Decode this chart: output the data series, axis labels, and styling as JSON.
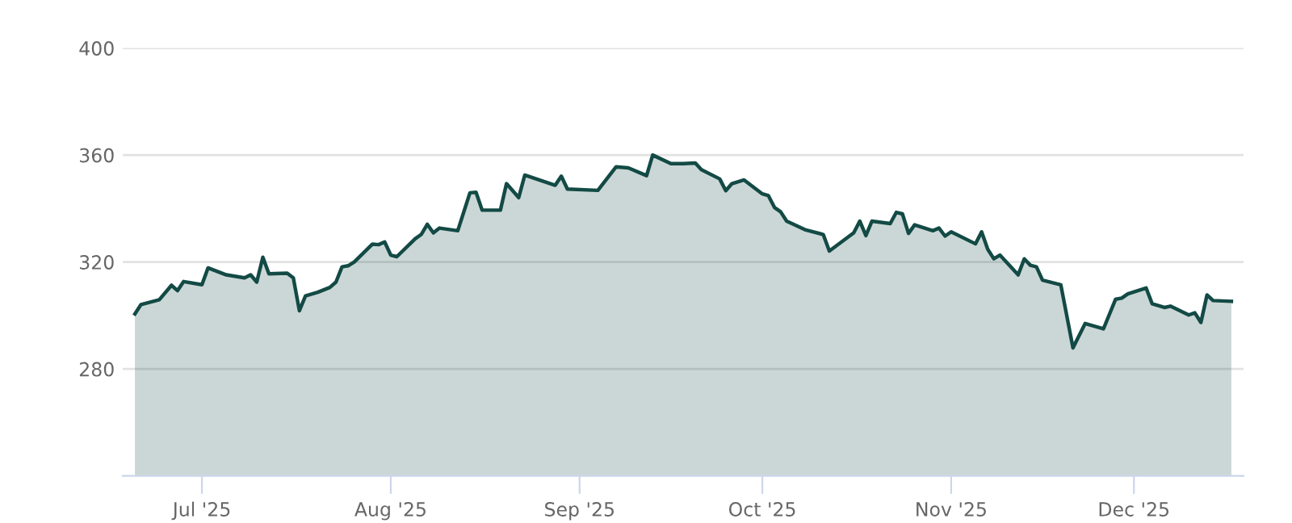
{
  "chart_data": {
    "type": "area",
    "color": "#134a45",
    "ylim": [
      240,
      400
    ],
    "yticks": [
      280,
      320,
      360,
      400
    ],
    "xlim": [
      "2025-06-18",
      "2025-12-19"
    ],
    "xticks": [
      {
        "value": "2025-07-01",
        "label": "Jul '25"
      },
      {
        "value": "2025-08-01",
        "label": "Aug '25"
      },
      {
        "value": "2025-09-01",
        "label": "Sep '25"
      },
      {
        "value": "2025-10-01",
        "label": "Oct '25"
      },
      {
        "value": "2025-11-01",
        "label": "Nov '25"
      },
      {
        "value": "2025-12-01",
        "label": "Dec '25"
      }
    ],
    "grid": "y",
    "legend": false,
    "marker": "none",
    "line_style": "solid",
    "x": [
      "2025-06-20",
      "2025-06-21",
      "2025-06-24",
      "2025-06-26",
      "2025-06-27",
      "2025-06-28",
      "2025-07-01",
      "2025-07-02",
      "2025-07-05",
      "2025-07-08",
      "2025-07-09",
      "2025-07-10",
      "2025-07-11",
      "2025-07-12",
      "2025-07-15",
      "2025-07-16",
      "2025-07-17",
      "2025-07-18",
      "2025-07-20",
      "2025-07-22",
      "2025-07-23",
      "2025-07-24",
      "2025-07-25",
      "2025-07-26",
      "2025-07-29",
      "2025-07-30",
      "2025-07-31",
      "2025-08-01",
      "2025-08-02",
      "2025-08-05",
      "2025-08-06",
      "2025-08-07",
      "2025-08-08",
      "2025-08-09",
      "2025-08-12",
      "2025-08-14",
      "2025-08-15",
      "2025-08-16",
      "2025-08-19",
      "2025-08-20",
      "2025-08-22",
      "2025-08-23",
      "2025-08-28",
      "2025-08-29",
      "2025-08-30",
      "2025-09-04",
      "2025-09-07",
      "2025-09-09",
      "2025-09-12",
      "2025-09-13",
      "2025-09-16",
      "2025-09-18",
      "2025-09-20",
      "2025-09-21",
      "2025-09-24",
      "2025-09-25",
      "2025-09-26",
      "2025-09-28",
      "2025-10-01",
      "2025-10-02",
      "2025-10-03",
      "2025-10-04",
      "2025-10-05",
      "2025-10-08",
      "2025-10-11",
      "2025-10-12",
      "2025-10-16",
      "2025-10-17",
      "2025-10-18",
      "2025-10-19",
      "2025-10-22",
      "2025-10-23",
      "2025-10-24",
      "2025-10-25",
      "2025-10-26",
      "2025-10-29",
      "2025-10-30",
      "2025-10-31",
      "2025-11-01",
      "2025-11-05",
      "2025-11-06",
      "2025-11-07",
      "2025-11-08",
      "2025-11-09",
      "2025-11-12",
      "2025-11-13",
      "2025-11-14",
      "2025-11-15",
      "2025-11-16",
      "2025-11-19",
      "2025-11-21",
      "2025-11-23",
      "2025-11-26",
      "2025-11-28",
      "2025-11-29",
      "2025-11-30",
      "2025-12-03",
      "2025-12-04",
      "2025-12-06",
      "2025-12-07",
      "2025-12-10",
      "2025-12-11",
      "2025-12-12",
      "2025-12-13",
      "2025-12-14",
      "2025-12-17"
    ],
    "values": [
      300.6,
      304.1,
      305.9,
      311.3,
      309.3,
      312.7,
      311.5,
      317.8,
      315.2,
      314.1,
      315.2,
      312.5,
      321.8,
      315.6,
      315.8,
      314.1,
      301.8,
      307.3,
      308.7,
      310.5,
      312.5,
      318.2,
      318.6,
      320,
      326.7,
      326.5,
      327.5,
      322.6,
      322,
      328.7,
      330.3,
      334.1,
      330.9,
      332.7,
      331.7,
      345.9,
      346.1,
      339.4,
      339.4,
      349.3,
      344.1,
      352.5,
      348.7,
      352.1,
      347.3,
      346.8,
      355.6,
      355.2,
      352.3,
      360,
      356.8,
      356.8,
      357,
      354.5,
      351.1,
      346.7,
      349.3,
      350.7,
      345.5,
      344.8,
      340.4,
      338.8,
      335.3,
      332.1,
      330.3,
      324.1,
      330.9,
      335.3,
      329.9,
      335.3,
      334.4,
      338.6,
      338,
      330.7,
      333.9,
      331.7,
      332.7,
      329.7,
      331.3,
      326.8,
      331.3,
      324.8,
      321.2,
      322.6,
      315.2,
      321.2,
      318.8,
      318.2,
      313.2,
      311.5,
      287.9,
      297,
      295,
      306.1,
      306.5,
      308.1,
      310.3,
      304.4,
      303,
      303.5,
      300.2,
      301,
      297.4,
      307.7,
      305.6,
      305.3
    ]
  }
}
